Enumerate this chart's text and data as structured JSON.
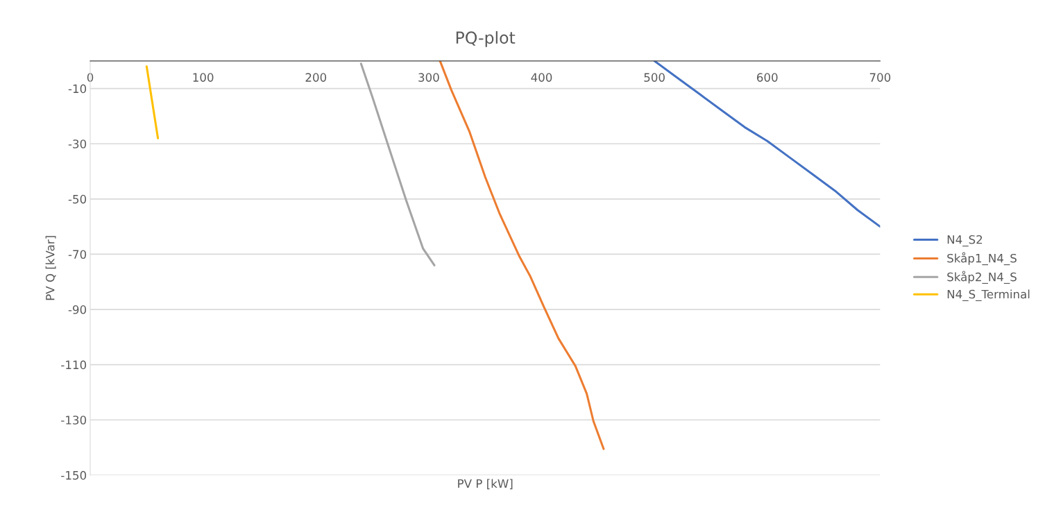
{
  "chart_data": {
    "type": "line",
    "title": "PQ-plot",
    "xlabel": "PV P [kW]",
    "ylabel": "PV Q [kVar]",
    "xlim": [
      0,
      700
    ],
    "xticks": [
      0,
      100,
      200,
      300,
      400,
      500,
      600,
      700
    ],
    "ylim": [
      -150,
      0
    ],
    "yticks": [
      -10,
      -30,
      -50,
      -70,
      -90,
      -110,
      -130,
      -150
    ],
    "grid": "y",
    "legend": "right",
    "marker": "none",
    "line_style": "solid",
    "series": [
      {
        "name": "N4_S2",
        "color": "#4472c4",
        "x": [
          500,
          520,
          540,
          560,
          580,
          600,
          620,
          640,
          660,
          680,
          700
        ],
        "values": [
          0,
          -6,
          -12,
          -18,
          -24,
          -29,
          -35,
          -41,
          -47,
          -54,
          -60
        ]
      },
      {
        "name": "Skåp1_N4_S",
        "color": "#ed7d31",
        "x": [
          310,
          320,
          336,
          350,
          363,
          380,
          390,
          402,
          415,
          430,
          440,
          446,
          455
        ],
        "values": [
          0,
          -10.5,
          -25.5,
          -42,
          -55.5,
          -70.5,
          -78,
          -89,
          -100.5,
          -110.5,
          -120.5,
          -130.5,
          -140.5
        ]
      },
      {
        "name": "Skåp2_N4_S",
        "color": "#a5a5a5",
        "x": [
          240,
          250,
          264,
          280,
          295,
          305
        ],
        "values": [
          -1,
          -13,
          -30.5,
          -50.5,
          -68,
          -74
        ]
      },
      {
        "name": "N4_S_Terminal",
        "color": "#ffc000",
        "x": [
          50,
          60
        ],
        "values": [
          -2,
          -28
        ]
      }
    ]
  }
}
